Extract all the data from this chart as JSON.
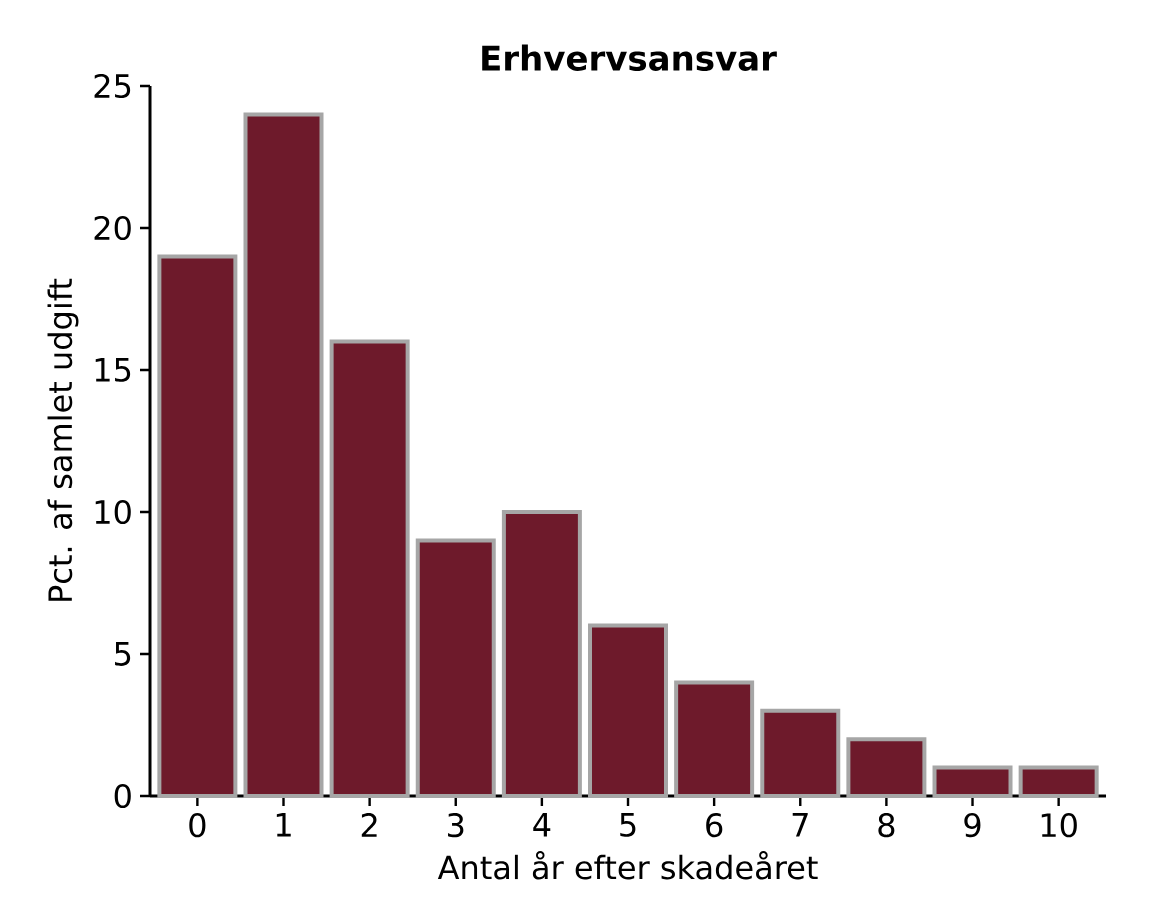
{
  "chart_data": {
    "type": "bar",
    "title": "Erhvervsansvar",
    "xlabel": "Antal år efter skadeåret",
    "ylabel": "Pct. af samlet udgift",
    "categories": [
      "0",
      "1",
      "2",
      "3",
      "4",
      "5",
      "6",
      "7",
      "8",
      "9",
      "10"
    ],
    "values": [
      19,
      24,
      16,
      9,
      10,
      6,
      4,
      3,
      2,
      1,
      1
    ],
    "color": "#6e1a2b",
    "ylim": [
      0,
      25
    ],
    "yticks": [
      0,
      5,
      10,
      15,
      20,
      25
    ]
  }
}
